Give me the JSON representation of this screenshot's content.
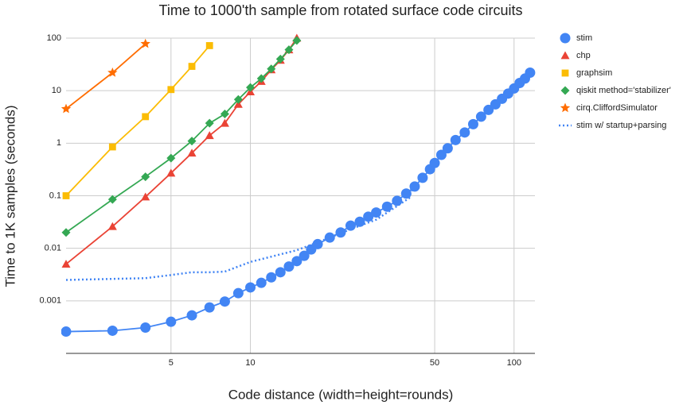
{
  "chart_data": {
    "type": "line",
    "title": "Time to 1000'th sample from rotated surface code circuits",
    "x_label": "Code distance (width=height=rounds)",
    "y_label": "Time to 1K samples (seconds)",
    "x_scale": "log",
    "y_scale": "log",
    "grid": true,
    "legend_position": "right",
    "xlim": [
      2,
      120
    ],
    "ylim": [
      0.0001,
      100
    ],
    "xticks": [
      5,
      10,
      50,
      100
    ],
    "yticks": [
      0.001,
      0.01,
      0.1,
      1,
      10,
      100
    ],
    "series": [
      {
        "name": "stim",
        "color": "#4285f4",
        "marker": "circle",
        "x": [
          2,
          3,
          4,
          5,
          6,
          7,
          8,
          9,
          10,
          11,
          12,
          13,
          14,
          15,
          16,
          17,
          18,
          20,
          22,
          24,
          26,
          28,
          30,
          33,
          36,
          39,
          42,
          45,
          48,
          50,
          53,
          56,
          60,
          65,
          70,
          75,
          80,
          85,
          90,
          95,
          100,
          105,
          110,
          115
        ],
        "values": [
          0.00026,
          0.00027,
          0.00031,
          0.0004,
          0.00053,
          0.00075,
          0.00097,
          0.0014,
          0.0018,
          0.0022,
          0.0028,
          0.0035,
          0.0045,
          0.0057,
          0.0072,
          0.0095,
          0.012,
          0.016,
          0.02,
          0.027,
          0.032,
          0.04,
          0.048,
          0.062,
          0.08,
          0.11,
          0.15,
          0.22,
          0.32,
          0.42,
          0.6,
          0.8,
          1.15,
          1.6,
          2.3,
          3.2,
          4.3,
          5.5,
          7,
          8.8,
          11,
          14,
          17,
          22
        ]
      },
      {
        "name": "chp",
        "color": "#ea4335",
        "marker": "triangle",
        "x": [
          2,
          3,
          4,
          5,
          6,
          7,
          8,
          9,
          10,
          11,
          12,
          13,
          14,
          15
        ],
        "values": [
          0.005,
          0.026,
          0.095,
          0.27,
          0.65,
          1.4,
          2.4,
          5.5,
          9.5,
          15,
          25,
          38,
          60,
          100
        ]
      },
      {
        "name": "graphsim",
        "color": "#fbbc04",
        "marker": "square",
        "x": [
          2,
          3,
          4,
          5,
          6,
          7
        ],
        "values": [
          0.1,
          0.85,
          3.2,
          10.5,
          29,
          72
        ]
      },
      {
        "name": "qiskit method='stabilizer'",
        "color": "#34a853",
        "marker": "diamond",
        "x": [
          2,
          3,
          4,
          5,
          6,
          7,
          8,
          9,
          10,
          11,
          12,
          13,
          14,
          15
        ],
        "values": [
          0.02,
          0.085,
          0.23,
          0.52,
          1.1,
          2.4,
          3.6,
          6.8,
          11.5,
          17,
          26,
          40,
          60,
          90
        ]
      },
      {
        "name": "cirq.CliffordSimulator",
        "color": "#ff6d01",
        "marker": "star",
        "x": [
          2,
          3,
          4
        ],
        "values": [
          4.5,
          22,
          78
        ]
      },
      {
        "name": "stim w/ startup+parsing",
        "color": "#4285f4",
        "marker": "none",
        "dash": "dotted",
        "x": [
          2,
          4,
          5,
          6,
          7,
          8,
          10,
          15,
          18,
          25,
          30,
          40,
          42
        ],
        "values": [
          0.0025,
          0.0027,
          0.0031,
          0.0035,
          0.0035,
          0.0036,
          0.0055,
          0.0092,
          0.013,
          0.025,
          0.035,
          0.09,
          0.19
        ]
      }
    ]
  }
}
